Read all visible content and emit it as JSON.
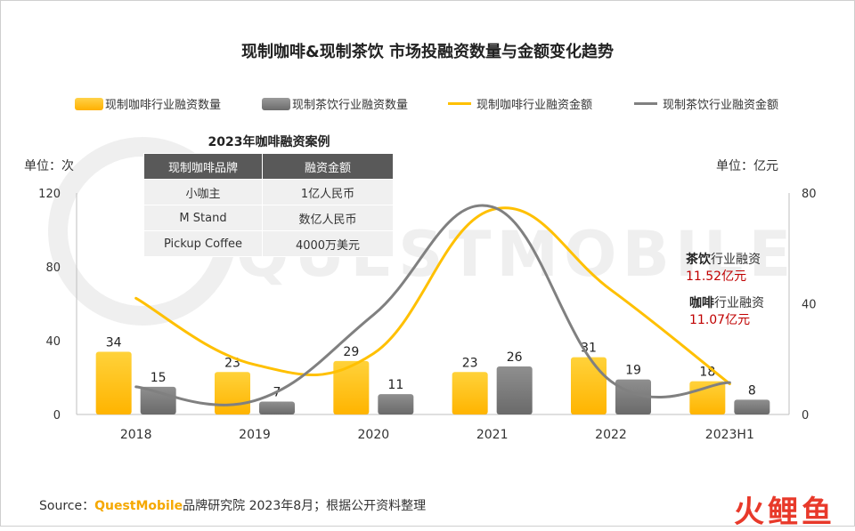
{
  "chart_data": {
    "type": "bar+line",
    "title": "现制咖啡&现制茶饮 市场投融资数量与金额变化趋势",
    "categories": [
      "2018",
      "2019",
      "2020",
      "2021",
      "2022",
      "2023H1"
    ],
    "y_left": {
      "unit_label": "单位：次",
      "ylim": [
        0,
        120
      ],
      "ticks": [
        0,
        40,
        80,
        120
      ]
    },
    "y_right": {
      "unit_label": "单位：亿元",
      "ylim": [
        0,
        80
      ],
      "ticks": [
        0,
        40,
        80
      ]
    },
    "series": [
      {
        "name": "现制咖啡行业融资数量",
        "kind": "bar",
        "axis": "left",
        "color": "#ffc000",
        "values": [
          34,
          23,
          29,
          23,
          31,
          18
        ]
      },
      {
        "name": "现制茶饮行业融资数量",
        "kind": "bar",
        "axis": "left",
        "color": "#808080",
        "values": [
          15,
          7,
          11,
          26,
          19,
          8
        ]
      },
      {
        "name": "现制咖啡行业融资金额",
        "kind": "line",
        "axis": "right",
        "color": "#ffc000",
        "values": [
          42,
          18,
          22,
          74,
          45,
          11.07
        ]
      },
      {
        "name": "现制茶饮行业融资金额",
        "kind": "line",
        "axis": "right",
        "color": "#808080",
        "values": [
          10,
          5,
          36,
          75,
          12,
          11.52
        ]
      }
    ],
    "annotations": [
      {
        "bold": "茶饮",
        "rest": "行业融资",
        "value": "11.52亿元"
      },
      {
        "bold": "咖啡",
        "rest": "行业融资",
        "value": "11.07亿元"
      }
    ],
    "legend_position": "top",
    "grid": false
  },
  "table": {
    "title": "2023年咖啡融资案例",
    "headers": [
      "现制咖啡品牌",
      "融资金额"
    ],
    "rows": [
      [
        "小咖主",
        "1亿人民币"
      ],
      [
        "M Stand",
        "数亿人民币"
      ],
      [
        "Pickup Coffee",
        "4000万美元"
      ]
    ]
  },
  "watermark": "QUESTMOBILE",
  "source": {
    "prefix": "Source：",
    "brand": "QuestMobile",
    "rest": "品牌研究院 2023年8月；根据公开资料整理"
  },
  "logo": {
    "text": "火鲤鱼"
  }
}
